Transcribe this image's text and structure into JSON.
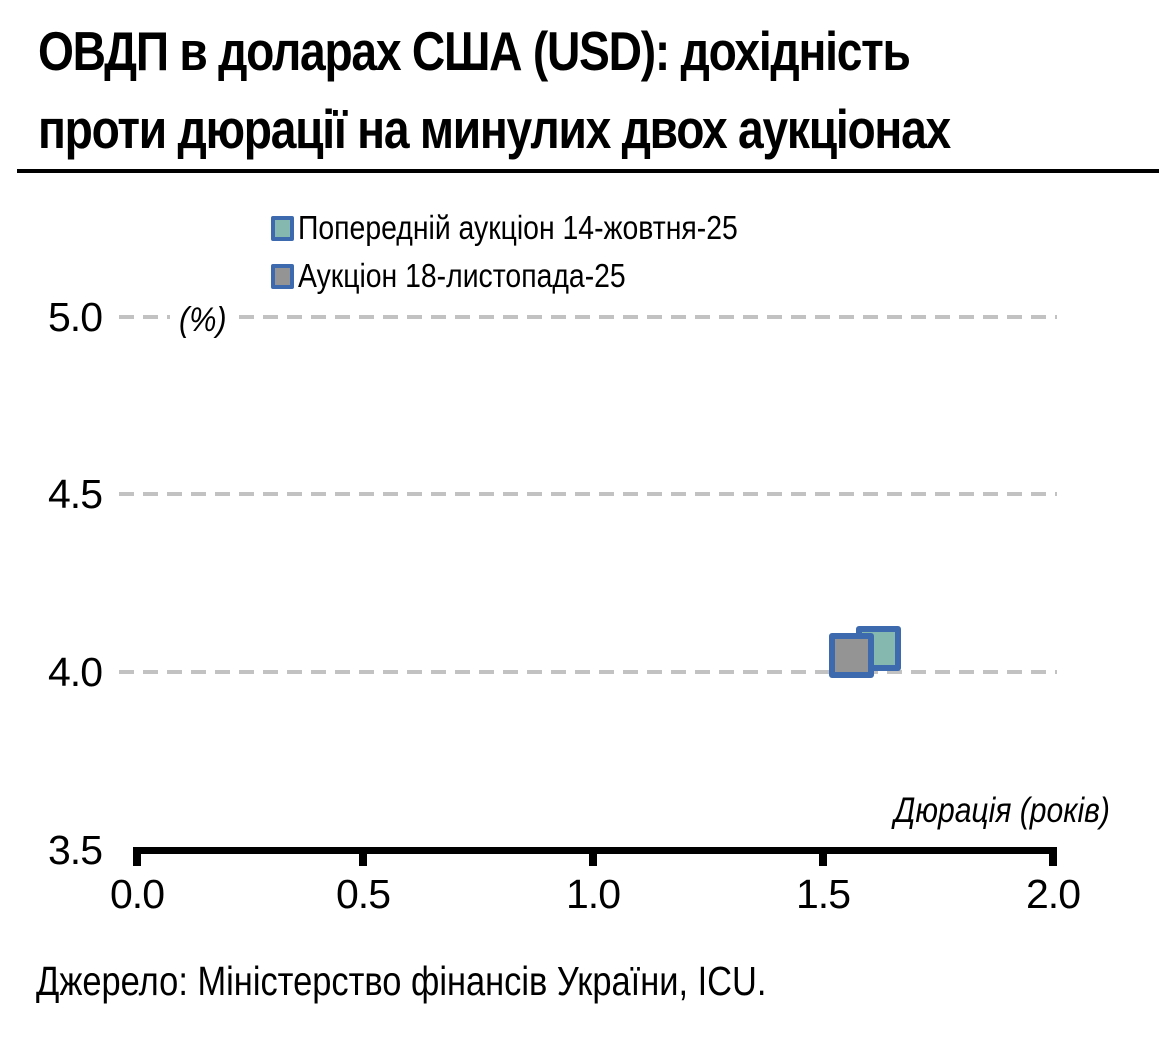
{
  "title": {
    "lines": [
      "ОВДП в доларах США (USD): дохідність",
      "проти дюрації на минулих двох аукціонах"
    ]
  },
  "legend": {
    "marker_border_color": "#3d6aaf",
    "items": [
      {
        "label": "Попередній аукціон 14-жовтня-25",
        "fill_color": "#85b8af"
      },
      {
        "label": "Аукціон 18-листопада-25",
        "fill_color": "#949494"
      }
    ]
  },
  "axes": {
    "y_unit_label": "(%)",
    "x_title": "Дюрація (років)",
    "y_ticks": [
      "5.0",
      "4.5",
      "4.0",
      "3.5"
    ],
    "x_ticks": [
      "0.0",
      "0.5",
      "1.0",
      "1.5",
      "2.0"
    ]
  },
  "source": "Джерело: Міністерство фінансів України, ICU.",
  "colors": {
    "marker_border": "#3d6aaf",
    "series_previous_fill": "#85b8af",
    "series_current_fill": "#949494",
    "gridline": "#c2c2c2",
    "axis": "#000000",
    "background": "#ffffff"
  },
  "chart_data": {
    "type": "scatter",
    "title": "ОВДП в доларах США (USD): дохідність проти дюрації на минулих двох аукціонах",
    "xlabel": "Дюрація (років)",
    "ylabel": "(%)",
    "xlim": [
      0.0,
      2.0
    ],
    "ylim": [
      3.5,
      5.0
    ],
    "x_ticks": [
      0.0,
      0.5,
      1.0,
      1.5,
      2.0
    ],
    "y_ticks": [
      3.5,
      4.0,
      4.5,
      5.0
    ],
    "grid": "horizontal-dashed",
    "legend_position": "top-center",
    "marker": "square",
    "series": [
      {
        "name": "Попередній аукціон 14-жовтня-25",
        "fill": "#85b8af",
        "border": "#3d6aaf",
        "points": [
          {
            "x": 1.62,
            "y": 4.07
          }
        ]
      },
      {
        "name": "Аукціон 18-листопада-25",
        "fill": "#949494",
        "border": "#3d6aaf",
        "points": [
          {
            "x": 1.56,
            "y": 4.05
          }
        ]
      }
    ],
    "source": "Джерело: Міністерство фінансів України, ICU."
  }
}
